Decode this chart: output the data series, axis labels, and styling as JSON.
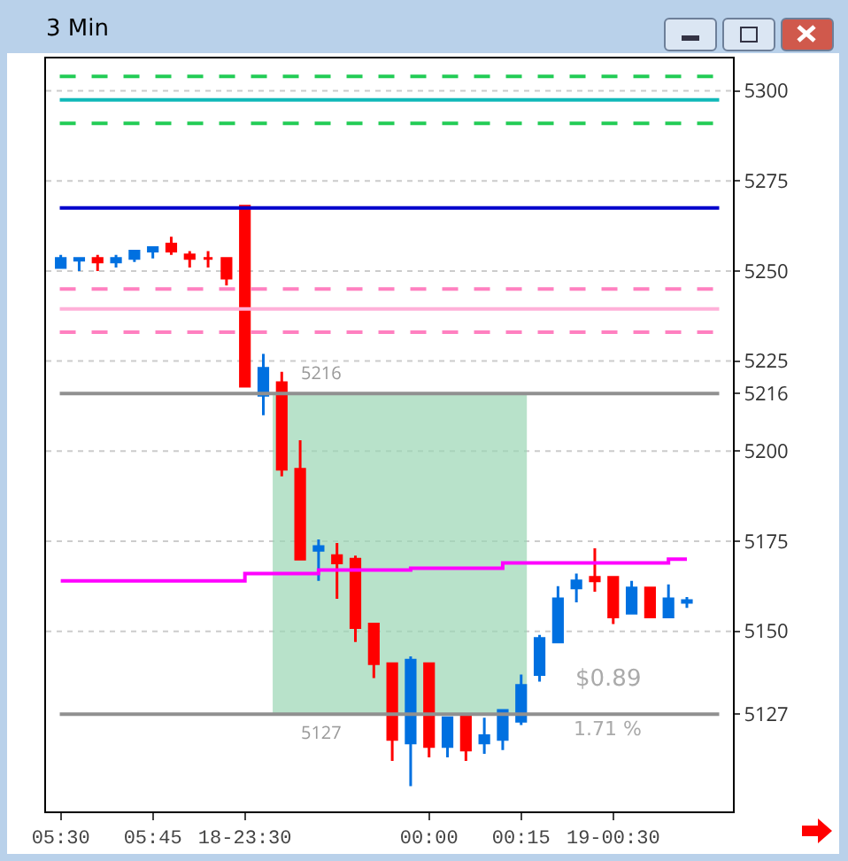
{
  "chart_data": {
    "type": "candlestick",
    "title": "3 Min",
    "categories": [
      "05:30",
      null,
      null,
      null,
      null,
      "05:45",
      null,
      null,
      null,
      null,
      "18-23:30",
      null,
      null,
      null,
      null,
      null,
      null,
      null,
      null,
      null,
      "00:00",
      null,
      null,
      null,
      null,
      "00:15",
      null,
      null,
      null,
      null,
      "19-00:30",
      null,
      null,
      null,
      null
    ],
    "ohlc": [
      [
        5251,
        5254.5,
        5251,
        5253.5
      ],
      [
        5253.5,
        5253.5,
        5250,
        5253
      ],
      [
        5253.5,
        5254.5,
        5250,
        5252.5
      ],
      [
        5252.5,
        5254.5,
        5251,
        5253.5
      ],
      [
        5253.5,
        5255.5,
        5252.5,
        5255.5
      ],
      [
        5255.5,
        5256.5,
        5253.5,
        5256.5
      ],
      [
        5257.5,
        5259.5,
        5254.5,
        5255.5
      ],
      [
        5254.5,
        5255.5,
        5251,
        5253.5
      ],
      [
        5253.5,
        5255.5,
        5251,
        5253.5
      ],
      [
        5253.5,
        5253.5,
        5246,
        5248
      ],
      [
        5268,
        5268,
        5218,
        5218
      ],
      [
        5215.5,
        5227,
        5210,
        5223
      ],
      [
        5219,
        5222,
        5193,
        5195
      ],
      [
        5195,
        5203,
        5170,
        5170
      ],
      [
        5172.5,
        5175.5,
        5164,
        5173.5
      ],
      [
        5171,
        5174.5,
        5159,
        5169
      ],
      [
        5170,
        5171,
        5147,
        5151
      ],
      [
        5152,
        5152,
        5137,
        5141
      ],
      [
        5141,
        5141,
        5114,
        5120
      ],
      [
        5119,
        5143,
        5107,
        5142
      ],
      [
        5141,
        5141,
        5115,
        5118
      ],
      [
        5118,
        5126,
        5115,
        5126
      ],
      [
        5126.5,
        5126.5,
        5114,
        5117
      ],
      [
        5119,
        5126,
        5116,
        5121
      ],
      [
        5120,
        5128,
        5117,
        5128
      ],
      [
        5125,
        5138,
        5124,
        5135
      ],
      [
        5138,
        5149,
        5136,
        5148
      ],
      [
        5147,
        5162.5,
        5147,
        5159
      ],
      [
        5162,
        5166,
        5158,
        5164
      ],
      [
        5165,
        5173,
        5161,
        5164
      ],
      [
        5165,
        5165,
        5152,
        5154
      ],
      [
        5155,
        5164,
        5155,
        5162
      ],
      [
        5162,
        5162,
        5154,
        5154
      ],
      [
        5154,
        5163,
        5154,
        5159
      ],
      [
        5158,
        5159.5,
        5156.5,
        5158.5
      ]
    ],
    "colors": [
      "#0070e0",
      "#0070e0",
      "#ff0000",
      "#0070e0",
      "#0070e0",
      "#0070e0",
      "#ff0000",
      "#ff0000",
      "#ff0000",
      "#ff0000",
      "#ff0000",
      "#0070e0",
      "#ff0000",
      "#ff0000",
      "#0070e0",
      "#ff0000",
      "#ff0000",
      "#ff0000",
      "#ff0000",
      "#0070e0",
      "#ff0000",
      "#0070e0",
      "#ff0000",
      "#0070e0",
      "#0070e0",
      "#0070e0",
      "#0070e0",
      "#0070e0",
      "#0070e0",
      "#ff0000",
      "#ff0000",
      "#0070e0",
      "#ff0000",
      "#0070e0",
      "#0070e0"
    ],
    "series": [
      {
        "type": "step",
        "color": "#ff00ff",
        "values": [
          5164,
          5164,
          5164,
          5164,
          5164,
          5164,
          5164,
          5164,
          5164,
          5164,
          5166,
          5166,
          5166,
          5166,
          5167,
          5167,
          5167,
          5167,
          5167,
          5167.5,
          5167.5,
          5167.5,
          5167.5,
          5167.5,
          5169,
          5169,
          5169,
          5169,
          5169,
          5169,
          5169,
          5169,
          5169,
          5170,
          5170
        ]
      }
    ],
    "ylim": [
      5100,
      5309
    ],
    "yticks": [
      5127,
      5150,
      5175,
      5200,
      5216,
      5225,
      5250,
      5275,
      5300
    ],
    "ref_lines": [
      {
        "axis": "y",
        "value": 5304,
        "color": "#22cc55",
        "line_style": "dashed"
      },
      {
        "axis": "y",
        "value": 5297.5,
        "color": "#10b8b8",
        "line_style": "solid"
      },
      {
        "axis": "y",
        "value": 5291,
        "color": "#22cc55",
        "line_style": "dashed"
      },
      {
        "axis": "y",
        "value": 5267.5,
        "color": "#0000cc",
        "line_style": "solid"
      },
      {
        "axis": "y",
        "value": 5245,
        "color": "#ff80c0",
        "line_style": "dashed"
      },
      {
        "axis": "y",
        "value": 5239.5,
        "color": "#ffb0d8",
        "line_style": "solid"
      },
      {
        "axis": "y",
        "value": 5233,
        "color": "#ff80c0",
        "line_style": "dashed"
      },
      {
        "axis": "y",
        "value": 5216,
        "label": "5216",
        "color": "#909090",
        "line_style": "solid"
      },
      {
        "axis": "y",
        "value": 5127,
        "label": "5127",
        "color": "#909090",
        "line_style": "solid"
      }
    ],
    "bands": [
      {
        "axis": "y",
        "from": 5127,
        "to": 5216,
        "color": "#9ad6b4"
      }
    ],
    "annotations": [
      "$0.89",
      "1.71 %"
    ],
    "grid": "y"
  }
}
